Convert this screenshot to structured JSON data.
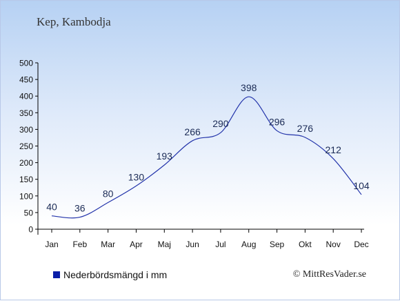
{
  "page": {
    "title": "Kep, Kambodja"
  },
  "legend": {
    "label": "Nederbördsmängd i mm",
    "color": "#0a1ea8"
  },
  "credit": "© MittResVader.se",
  "chart_data": {
    "type": "line",
    "title": "Kep, Kambodja",
    "categories": [
      "Jan",
      "Feb",
      "Mar",
      "Apr",
      "Maj",
      "Jun",
      "Jul",
      "Aug",
      "Sep",
      "Okt",
      "Nov",
      "Dec"
    ],
    "series": [
      {
        "name": "Nederbördsmängd i mm",
        "values": [
          40,
          36,
          80,
          130,
          193,
          266,
          290,
          398,
          296,
          276,
          212,
          104
        ],
        "color": "#2233aa"
      }
    ],
    "yticks": [
      0,
      50,
      100,
      150,
      200,
      250,
      300,
      350,
      400,
      450,
      500
    ],
    "ylim": [
      0,
      500
    ],
    "grid": false,
    "legend_position": "bottom-left"
  }
}
